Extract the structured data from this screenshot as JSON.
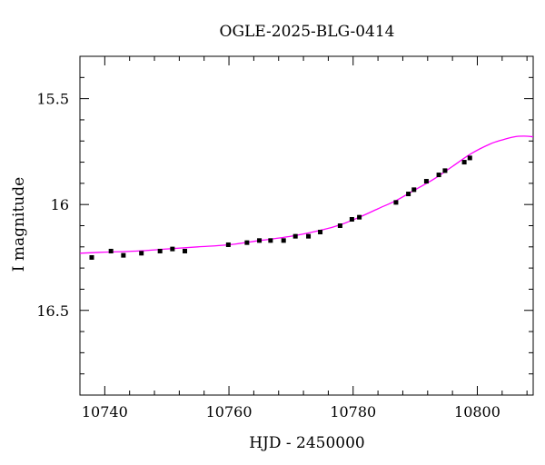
{
  "chart_data": {
    "type": "scatter",
    "title": "OGLE-2025-BLG-0414",
    "xlabel": "HJD - 2450000",
    "ylabel": "I magnitude",
    "xlim": [
      10736,
      10809
    ],
    "ylim": [
      16.9,
      15.3
    ],
    "y_inverted": true,
    "grid": false,
    "x_ticks": [
      10740,
      10760,
      10780,
      10800
    ],
    "x_tick_labels": [
      "10740",
      "10760",
      "10780",
      "10800"
    ],
    "y_ticks": [
      15.5,
      16,
      16.5
    ],
    "y_tick_labels": [
      "15.5",
      "16",
      "16.5"
    ],
    "colors": {
      "points": "#000000",
      "model": "#ff00ff"
    },
    "series": [
      {
        "kind": "points",
        "x": [
          10737.9,
          10741.0,
          10743.0,
          10745.9,
          10748.9,
          10750.9,
          10752.9,
          10759.9,
          10762.9,
          10764.9,
          10766.7,
          10768.8,
          10770.7,
          10772.8,
          10774.7,
          10777.9,
          10779.8,
          10781.0,
          10786.9,
          10788.9,
          10789.8,
          10791.8,
          10793.8,
          10794.8,
          10797.9,
          10798.8
        ],
        "y": [
          16.25,
          16.22,
          16.24,
          16.23,
          16.22,
          16.21,
          16.22,
          16.19,
          16.18,
          16.17,
          16.17,
          16.17,
          16.15,
          16.15,
          16.13,
          16.1,
          16.07,
          16.06,
          15.99,
          15.95,
          15.93,
          15.89,
          15.86,
          15.84,
          15.8,
          15.78
        ],
        "yerr": [
          0.01,
          0.01,
          0.01,
          0.01,
          0.01,
          0.01,
          0.01,
          0.01,
          0.01,
          0.01,
          0.01,
          0.01,
          0.01,
          0.01,
          0.01,
          0.01,
          0.01,
          0.01,
          0.01,
          0.01,
          0.01,
          0.01,
          0.01,
          0.01,
          0.01,
          0.01
        ]
      },
      {
        "kind": "model",
        "x": [
          10736,
          10740,
          10745,
          10750,
          10755,
          10760,
          10765,
          10770,
          10775,
          10778,
          10781,
          10784,
          10787,
          10790,
          10793,
          10796,
          10799,
          10802,
          10804,
          10806,
          10807.5,
          10809
        ],
        "y": [
          16.23,
          16.225,
          16.22,
          16.21,
          16.2,
          16.19,
          16.17,
          16.15,
          16.12,
          16.095,
          16.06,
          16.02,
          15.98,
          15.93,
          15.88,
          15.82,
          15.76,
          15.715,
          15.695,
          15.68,
          15.677,
          15.68
        ]
      }
    ]
  }
}
